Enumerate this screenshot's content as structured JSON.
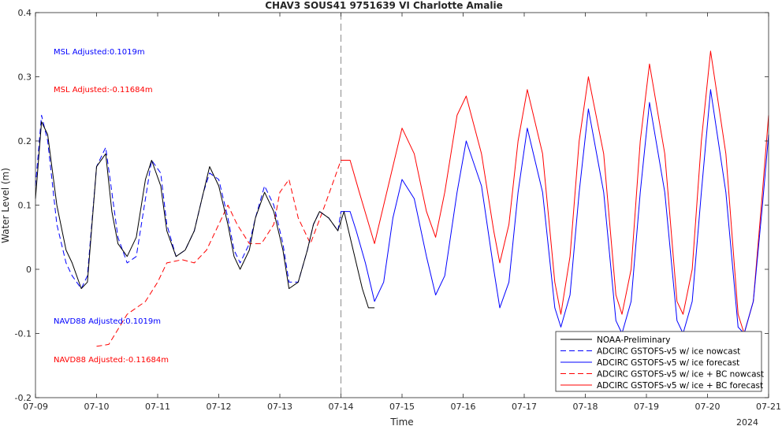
{
  "chart_data": {
    "type": "line",
    "title": "CHAV3 SOUS41 9751639 VI Charlotte Amalie",
    "xlabel": "Time",
    "ylabel": "Water Level (m)",
    "x_tick_labels": [
      "07-09",
      "07-10",
      "07-11",
      "07-12",
      "07-13",
      "07-14",
      "07-15",
      "07-16",
      "07-17",
      "07-18",
      "07-19",
      "07-20",
      "07-21"
    ],
    "x_range_days": [
      9,
      21
    ],
    "x_secondary_label": "2024",
    "ylim": [
      -0.2,
      0.4
    ],
    "y_ticks": [
      -0.2,
      -0.1,
      0,
      0.1,
      0.2,
      0.3,
      0.4
    ],
    "y_tick_labels": [
      "-0.2",
      "-0.1",
      "0",
      "0.1",
      "0.2",
      "0.3",
      "0.4"
    ],
    "grid": false,
    "nowcast_forecast_divider_day": 14,
    "legend_position": "bottom-right",
    "annotations": [
      {
        "text": "MSL Adjusted:0.1019m",
        "color": "#0000ff"
      },
      {
        "text": "MSL Adjusted:-0.11684m",
        "color": "#ff0000"
      },
      {
        "text": "NAVD88 Adjusted:0.1019m",
        "color": "#0000ff"
      },
      {
        "text": "NAVD88 Adjusted:-0.11684m",
        "color": "#ff0000"
      }
    ],
    "series": [
      {
        "name": "NOAA-Preliminary",
        "color": "#000000",
        "style": "solid",
        "x": [
          9.0,
          9.1,
          9.2,
          9.35,
          9.5,
          9.6,
          9.75,
          9.85,
          10.0,
          10.15,
          10.25,
          10.35,
          10.5,
          10.65,
          10.8,
          10.9,
          11.05,
          11.15,
          11.3,
          11.45,
          11.6,
          11.75,
          11.85,
          12.0,
          12.15,
          12.25,
          12.35,
          12.5,
          12.6,
          12.75,
          12.9,
          13.05,
          13.15,
          13.3,
          13.45,
          13.55,
          13.65,
          13.8,
          13.95,
          14.05,
          14.2,
          14.35,
          14.45,
          14.55
        ],
        "y": [
          0.11,
          0.23,
          0.21,
          0.1,
          0.03,
          0.01,
          -0.03,
          -0.02,
          0.16,
          0.18,
          0.09,
          0.04,
          0.02,
          0.05,
          0.14,
          0.17,
          0.13,
          0.06,
          0.02,
          0.03,
          0.06,
          0.12,
          0.16,
          0.13,
          0.07,
          0.02,
          0.0,
          0.03,
          0.08,
          0.12,
          0.09,
          0.03,
          -0.03,
          -0.02,
          0.03,
          0.07,
          0.09,
          0.08,
          0.06,
          0.09,
          0.03,
          -0.03,
          -0.06,
          -0.06
        ]
      },
      {
        "name": "ADCIRC GSTOFS-v5 w/ ice nowcast",
        "color": "#0000ff",
        "style": "dashed",
        "x": [
          9.0,
          9.1,
          9.2,
          9.35,
          9.5,
          9.6,
          9.75,
          9.85,
          10.0,
          10.15,
          10.25,
          10.35,
          10.5,
          10.65,
          10.8,
          10.9,
          11.05,
          11.15,
          11.3,
          11.45,
          11.6,
          11.75,
          11.85,
          12.0,
          12.15,
          12.25,
          12.35,
          12.5,
          12.6,
          12.75,
          12.9,
          13.05,
          13.15,
          13.3,
          13.45,
          13.55,
          13.65,
          13.8,
          13.95,
          14.0
        ],
        "y": [
          0.13,
          0.24,
          0.2,
          0.07,
          0.01,
          -0.01,
          -0.03,
          -0.01,
          0.16,
          0.19,
          0.12,
          0.05,
          0.01,
          0.02,
          0.11,
          0.17,
          0.15,
          0.07,
          0.02,
          0.03,
          0.06,
          0.12,
          0.15,
          0.14,
          0.08,
          0.03,
          0.01,
          0.04,
          0.08,
          0.13,
          0.1,
          0.04,
          -0.02,
          -0.02,
          0.03,
          0.07,
          0.09,
          0.08,
          0.06,
          0.09
        ]
      },
      {
        "name": "ADCIRC GSTOFS-v5 w/ ice forecast",
        "color": "#0000ff",
        "style": "solid",
        "x": [
          14.0,
          14.15,
          14.25,
          14.4,
          14.55,
          14.7,
          14.85,
          15.0,
          15.2,
          15.4,
          15.55,
          15.7,
          15.9,
          16.05,
          16.3,
          16.5,
          16.6,
          16.75,
          16.9,
          17.05,
          17.3,
          17.5,
          17.6,
          17.75,
          17.9,
          18.05,
          18.3,
          18.5,
          18.6,
          18.75,
          18.9,
          19.05,
          19.3,
          19.5,
          19.6,
          19.75,
          19.9,
          20.05,
          20.3,
          20.5,
          20.6,
          20.75,
          20.9,
          21.0
        ],
        "y": [
          0.09,
          0.09,
          0.06,
          0.01,
          -0.05,
          -0.02,
          0.08,
          0.14,
          0.11,
          0.02,
          -0.04,
          -0.01,
          0.12,
          0.2,
          0.13,
          0.0,
          -0.06,
          -0.02,
          0.12,
          0.22,
          0.12,
          -0.06,
          -0.09,
          -0.04,
          0.12,
          0.25,
          0.12,
          -0.08,
          -0.1,
          -0.05,
          0.12,
          0.26,
          0.12,
          -0.08,
          -0.1,
          -0.05,
          0.12,
          0.28,
          0.12,
          -0.09,
          -0.1,
          -0.05,
          0.1,
          0.21
        ]
      },
      {
        "name": "ADCIRC GSTOFS-v5 w/ ice + BC nowcast",
        "color": "#ff0000",
        "style": "dashed",
        "x": [
          10.0,
          10.2,
          10.5,
          10.8,
          11.0,
          11.15,
          11.4,
          11.6,
          11.8,
          12.0,
          12.15,
          12.3,
          12.5,
          12.7,
          12.9,
          13.0,
          13.15,
          13.3,
          13.5,
          13.7,
          13.85,
          14.0
        ],
        "y": [
          -0.12,
          -0.117,
          -0.07,
          -0.05,
          -0.02,
          0.01,
          0.015,
          0.01,
          0.03,
          0.07,
          0.1,
          0.07,
          0.04,
          0.04,
          0.07,
          0.12,
          0.14,
          0.08,
          0.04,
          0.09,
          0.13,
          0.17
        ]
      },
      {
        "name": "ADCIRC GSTOFS-v5 w/ ice + BC forecast",
        "color": "#ff0000",
        "style": "solid",
        "x": [
          14.0,
          14.15,
          14.3,
          14.55,
          14.75,
          15.0,
          15.2,
          15.4,
          15.55,
          15.7,
          15.9,
          16.05,
          16.3,
          16.5,
          16.6,
          16.75,
          16.9,
          17.05,
          17.3,
          17.5,
          17.6,
          17.75,
          17.9,
          18.05,
          18.3,
          18.5,
          18.6,
          18.75,
          18.9,
          19.05,
          19.3,
          19.5,
          19.6,
          19.75,
          19.9,
          20.05,
          20.3,
          20.5,
          20.6,
          20.75,
          20.9,
          21.0
        ],
        "y": [
          0.17,
          0.17,
          0.12,
          0.04,
          0.12,
          0.22,
          0.18,
          0.09,
          0.05,
          0.12,
          0.24,
          0.27,
          0.18,
          0.06,
          0.01,
          0.07,
          0.2,
          0.28,
          0.18,
          -0.02,
          -0.07,
          0.02,
          0.2,
          0.3,
          0.18,
          -0.04,
          -0.07,
          0.0,
          0.2,
          0.32,
          0.18,
          -0.05,
          -0.07,
          0.0,
          0.2,
          0.34,
          0.18,
          -0.07,
          -0.1,
          -0.05,
          0.12,
          0.24
        ]
      }
    ]
  }
}
